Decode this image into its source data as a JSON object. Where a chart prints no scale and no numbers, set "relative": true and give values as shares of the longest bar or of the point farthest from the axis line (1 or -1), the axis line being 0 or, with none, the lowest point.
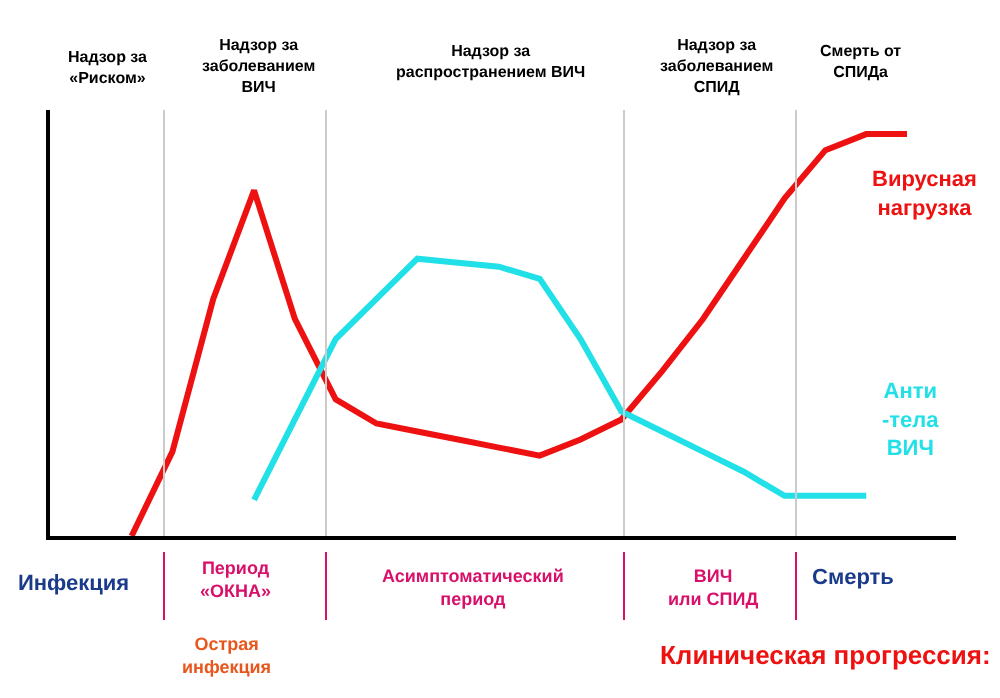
{
  "chart_data": {
    "type": "line",
    "relative": true,
    "legend": false,
    "marker": "none",
    "line_style": "solid",
    "categories": [
      null,
      null,
      null,
      null,
      null,
      null,
      null,
      null,
      null,
      null,
      null,
      null,
      null,
      null,
      null,
      null,
      null,
      null,
      null,
      null,
      null,
      null
    ],
    "series": [
      {
        "name": "Вирусная\nнагрузка",
        "color": "#ee1111",
        "values": [
          null,
          null,
          0,
          0.21,
          0.59,
          0.86,
          0.54,
          0.34,
          0.28,
          0.26,
          0.24,
          0.22,
          0.2,
          0.24,
          0.29,
          0.41,
          0.54,
          0.69,
          0.84,
          0.96,
          1,
          1
        ]
      },
      {
        "name": "Анти\n-тела\nВИЧ",
        "color": "#22e0e8",
        "values": [
          null,
          null,
          null,
          null,
          null,
          0.09,
          0.29,
          0.49,
          0.59,
          0.69,
          0.68,
          0.67,
          0.64,
          0.49,
          0.31,
          0.26,
          0.21,
          0.16,
          0.1,
          0.1,
          0.1,
          null
        ]
      }
    ],
    "annotations": [
      "Надзор за\n«Риском»",
      "Надзор за\nзаболеванием\nВИЧ",
      "Надзор за\nраспространением ВИЧ",
      "Надзор за\nзаболеванием\nСПИД",
      "Смерть от\nСПИДа",
      "Инфекция",
      "Период\n«ОКНА»",
      "Асимптоматический\nпериод",
      "ВИЧ\nили СПИД",
      "Смерть",
      "Острая\nинфекция",
      "Клиническая прогрессия:"
    ]
  }
}
